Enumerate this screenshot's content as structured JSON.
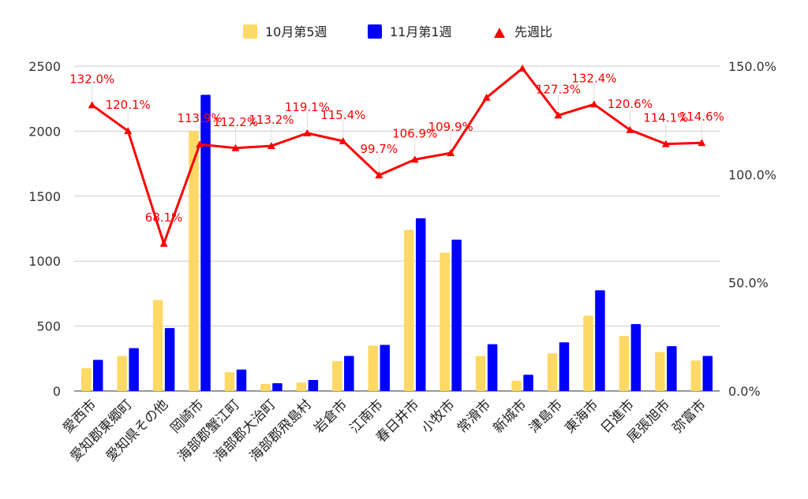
{
  "colors": {
    "series1": "#ffd966",
    "series2": "#0000ff",
    "line": "#ff0000",
    "grid": "#cccccc",
    "axis": "#333333"
  },
  "chart_data": {
    "type": "bar",
    "title": "",
    "xlabel": "",
    "ylabel": "",
    "legend_position": "top",
    "grid": true,
    "categories": [
      "愛西市",
      "愛知郡東郷町",
      "愛知県その他",
      "岡崎市",
      "海部郡蟹江町",
      "海部郡大治町",
      "海部郡飛島村",
      "岩倉市",
      "江南市",
      "春日井市",
      "小牧市",
      "常滑市",
      "新城市",
      "津島市",
      "東海市",
      "日進市",
      "尾張旭市",
      "弥富市"
    ],
    "series": [
      {
        "name": "10月第5週",
        "type": "bar",
        "axis": "left",
        "values": [
          175,
          270,
          700,
          2000,
          145,
          55,
          65,
          230,
          350,
          1240,
          1065,
          270,
          80,
          290,
          580,
          425,
          300,
          235
        ]
      },
      {
        "name": "11月第1週",
        "type": "bar",
        "axis": "left",
        "values": [
          240,
          330,
          485,
          2280,
          165,
          60,
          85,
          270,
          355,
          1330,
          1165,
          360,
          125,
          375,
          775,
          515,
          345,
          270
        ]
      },
      {
        "name": "先週比",
        "type": "line",
        "axis": "right",
        "values": [
          132.0,
          120.1,
          68.1,
          113.9,
          112.2,
          113.2,
          119.1,
          115.4,
          99.7,
          106.9,
          109.9,
          135.5,
          149.0,
          127.3,
          132.4,
          120.6,
          114.1,
          114.6
        ]
      }
    ],
    "line_labels": [
      "132.0%",
      "120.1%",
      "68.1%",
      "113.9%",
      "112.2%",
      "113.2%",
      "119.1%",
      "115.4%",
      "99.7%",
      "106.9%",
      "109.9%",
      "",
      "",
      "127.3%",
      "132.4%",
      "120.6%",
      "114.1%",
      "114.6%"
    ],
    "y_left": {
      "min": 0,
      "max": 2500,
      "ticks": [
        "0",
        "500",
        "1000",
        "1500",
        "2000",
        "2500"
      ]
    },
    "y_right": {
      "min": 0,
      "max": 150,
      "ticks": [
        "0.0%",
        "50.0%",
        "100.0%",
        "150.0%"
      ]
    }
  }
}
